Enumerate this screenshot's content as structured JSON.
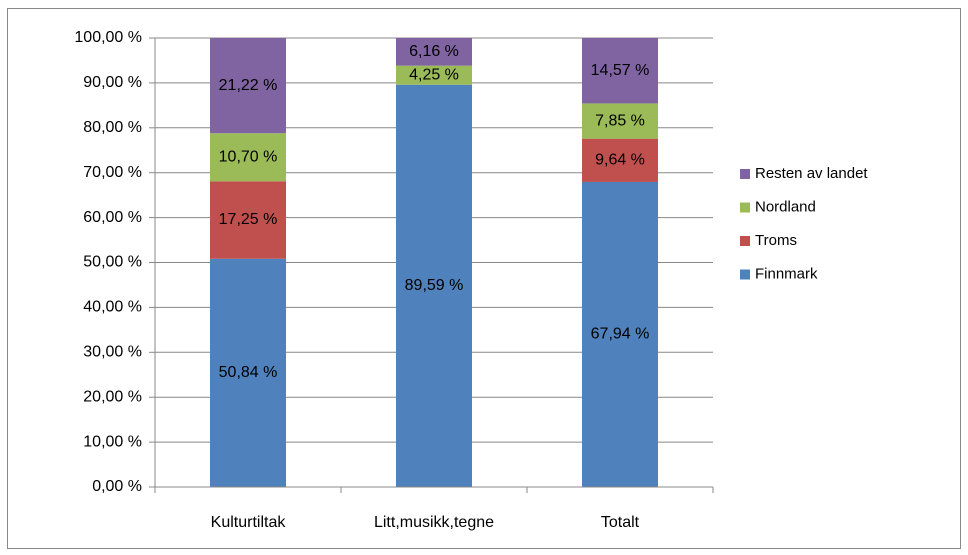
{
  "chart_data": {
    "type": "stacked_bar",
    "categories": [
      "Kulturtiltak",
      "Litt,musikk,tegne",
      "Totalt"
    ],
    "series": [
      {
        "name": "Finnmark",
        "color": "#4f81bd",
        "values": [
          50.84,
          89.59,
          67.94
        ],
        "value_labels": [
          "50,84 %",
          "89,59 %",
          "67,94 %"
        ]
      },
      {
        "name": "Troms",
        "color": "#c0504d",
        "values": [
          17.25,
          null,
          9.64
        ],
        "value_labels": [
          "17,25 %",
          null,
          "9,64 %"
        ]
      },
      {
        "name": "Nordland",
        "color": "#9bbb59",
        "values": [
          10.7,
          4.25,
          7.85
        ],
        "value_labels": [
          "10,70 %",
          "4,25 %",
          "7,85 %"
        ]
      },
      {
        "name": "Resten av landet",
        "color": "#8064a2",
        "values": [
          21.22,
          6.16,
          14.57
        ],
        "value_labels": [
          "21,22 %",
          "6,16 %",
          "14,57 %"
        ]
      }
    ],
    "ylim": [
      0,
      100
    ],
    "yticks": [
      {
        "value": 0,
        "label": "0,00 %"
      },
      {
        "value": 10,
        "label": "10,00 %"
      },
      {
        "value": 20,
        "label": "20,00 %"
      },
      {
        "value": 30,
        "label": "30,00 %"
      },
      {
        "value": 40,
        "label": "40,00 %"
      },
      {
        "value": 50,
        "label": "50,00 %"
      },
      {
        "value": 60,
        "label": "60,00 %"
      },
      {
        "value": 70,
        "label": "70,00 %"
      },
      {
        "value": 80,
        "label": "80,00 %"
      },
      {
        "value": 90,
        "label": "90,00 %"
      },
      {
        "value": 100,
        "label": "100,00 %"
      }
    ],
    "grid": true,
    "legend": "right"
  }
}
